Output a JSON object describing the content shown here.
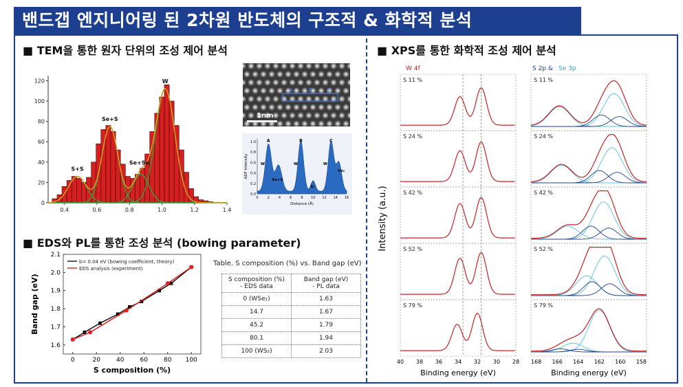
{
  "title": "밴드갭 엔지니어링 된 2차원 반도체의 구조적 & 화학적 분석",
  "sections": {
    "tem": "■ TEM을 통한 원자 단위의 조성 제어 분석",
    "eds": "■ EDS와 PL를 통한 조성 분석 (bowing parameter)",
    "xps": "■ XPS를 통한 화학적 조성 제어 분석"
  },
  "tem_image": {
    "scalebar": "1nm",
    "markers": [
      "A",
      "B",
      "C"
    ]
  },
  "adf_profile": {
    "ylabel": "ADF Intensity",
    "xlabel": "Distance (Å)",
    "peak_labels": [
      "A",
      "B",
      "C"
    ],
    "annotations": [
      "W",
      "W",
      "W",
      "Se+S",
      "S₂",
      "Se₂"
    ],
    "xticks": [
      "0",
      "2",
      "4",
      "6",
      "8",
      "10",
      "12",
      "14",
      "16"
    ],
    "yticks": [
      "0.0",
      "0.2",
      "0.4",
      "0.6",
      "0.8",
      "1.0"
    ]
  },
  "chart_data": [
    {
      "id": "histogram",
      "type": "bar",
      "title": "",
      "xlim": [
        0.3,
        1.4
      ],
      "ylim": [
        0,
        125
      ],
      "xticks": [
        "0.4",
        "0.6",
        "0.8",
        "1.0",
        "1.2",
        "1.4"
      ],
      "yticks": [
        "0",
        "20",
        "40",
        "60",
        "80",
        "100",
        "120"
      ],
      "peak_labels": [
        "S+S",
        "Se+S",
        "Se+Se",
        "W"
      ],
      "bins_x": [
        0.34,
        0.37,
        0.4,
        0.43,
        0.46,
        0.49,
        0.52,
        0.55,
        0.58,
        0.61,
        0.64,
        0.67,
        0.7,
        0.73,
        0.76,
        0.79,
        0.82,
        0.85,
        0.88,
        0.91,
        0.94,
        0.97,
        1.0,
        1.03,
        1.06,
        1.09,
        1.12,
        1.15,
        1.18,
        1.21,
        1.24,
        1.27,
        1.3
      ],
      "bins_y": [
        4,
        8,
        16,
        22,
        26,
        24,
        20,
        25,
        40,
        58,
        72,
        76,
        70,
        52,
        38,
        26,
        24,
        28,
        34,
        48,
        70,
        88,
        104,
        116,
        100,
        76,
        52,
        30,
        14,
        6,
        3,
        2,
        1
      ],
      "gaussians": [
        {
          "name": "S+S",
          "center": 0.48,
          "height": 26,
          "sigma": 0.055
        },
        {
          "name": "Se+S",
          "center": 0.68,
          "height": 75,
          "sigma": 0.05
        },
        {
          "name": "Se+Se",
          "center": 0.87,
          "height": 28,
          "sigma": 0.05
        },
        {
          "name": "W",
          "center": 1.02,
          "height": 112,
          "sigma": 0.06
        }
      ]
    },
    {
      "id": "bowing",
      "type": "line",
      "xlabel": "S composition (%)",
      "ylabel": "Band gap (eV)",
      "xlim": [
        -8,
        108
      ],
      "ylim": [
        1.55,
        2.1
      ],
      "xticks": [
        "0",
        "20",
        "40",
        "60",
        "80",
        "100"
      ],
      "yticks": [
        "1.6",
        "1.7",
        "1.8",
        "1.9",
        "2.0",
        "2.1"
      ],
      "series": [
        {
          "name": "b= 0.04 eV (bowing coefficient, theory)",
          "color": "#111111",
          "x": [
            0,
            10,
            23,
            38,
            48,
            58,
            73,
            83,
            100
          ],
          "y": [
            1.63,
            1.67,
            1.72,
            1.77,
            1.81,
            1.84,
            1.9,
            1.94,
            2.03
          ]
        },
        {
          "name": "EDS analysis (experiment)",
          "color": "#e02020",
          "x": [
            0,
            14.7,
            45.2,
            80.1,
            100
          ],
          "y": [
            1.63,
            1.67,
            1.79,
            1.94,
            2.03
          ]
        }
      ]
    },
    {
      "id": "xps",
      "type": "line",
      "ylabel": "Intensity (a.u.)",
      "panel_titles": [
        "W 4f",
        "S 2p &",
        "Se 3p"
      ],
      "xlabel_left": "Binding energy (eV)",
      "xlabel_right": "Binding energy (eV)",
      "xticks_left": [
        "40",
        "38",
        "36",
        "34",
        "32",
        "30",
        "28"
      ],
      "xticks_right": [
        "168",
        "166",
        "164",
        "162",
        "160",
        "158"
      ],
      "rows": [
        "S 11 %",
        "S 24 %",
        "S 42 %",
        "S 52 %",
        "S 79 %"
      ],
      "w4f_peaks": [
        [
          33.8,
          0.65,
          31.6,
          0.85
        ],
        [
          33.8,
          0.7,
          31.6,
          0.9
        ],
        [
          33.8,
          0.78,
          31.6,
          0.92
        ],
        [
          33.8,
          0.82,
          31.6,
          0.95
        ],
        [
          34.1,
          0.6,
          32.0,
          0.85
        ]
      ],
      "s2p_peaks": [
        [
          165.8,
          0.45,
          160.6,
          0.75
        ],
        [
          165.6,
          0.4,
          160.8,
          0.8
        ],
        [
          165.0,
          0.3,
          161.6,
          0.85
        ],
        [
          163.2,
          0.45,
          161.5,
          0.9
        ],
        [
          162.0,
          0.95,
          164.5,
          0.2
        ]
      ]
    }
  ],
  "table": {
    "title": "Table. S composition (%) vs. Band gap (eV)",
    "headers": [
      "S composition (%)\n- EDS data",
      "Band gap (eV)\n- PL data"
    ],
    "header1_line1": "S composition (%)",
    "header1_line2": "- EDS data",
    "header2_line1": "Band gap (eV)",
    "header2_line2": "- PL data",
    "rows": [
      [
        "0 (WSe₂)",
        "1.63"
      ],
      [
        "14.7",
        "1.67"
      ],
      [
        "45.2",
        "1.79"
      ],
      [
        "80.1",
        "1.94"
      ],
      [
        "100 (WS₂)",
        "2.03"
      ]
    ]
  }
}
